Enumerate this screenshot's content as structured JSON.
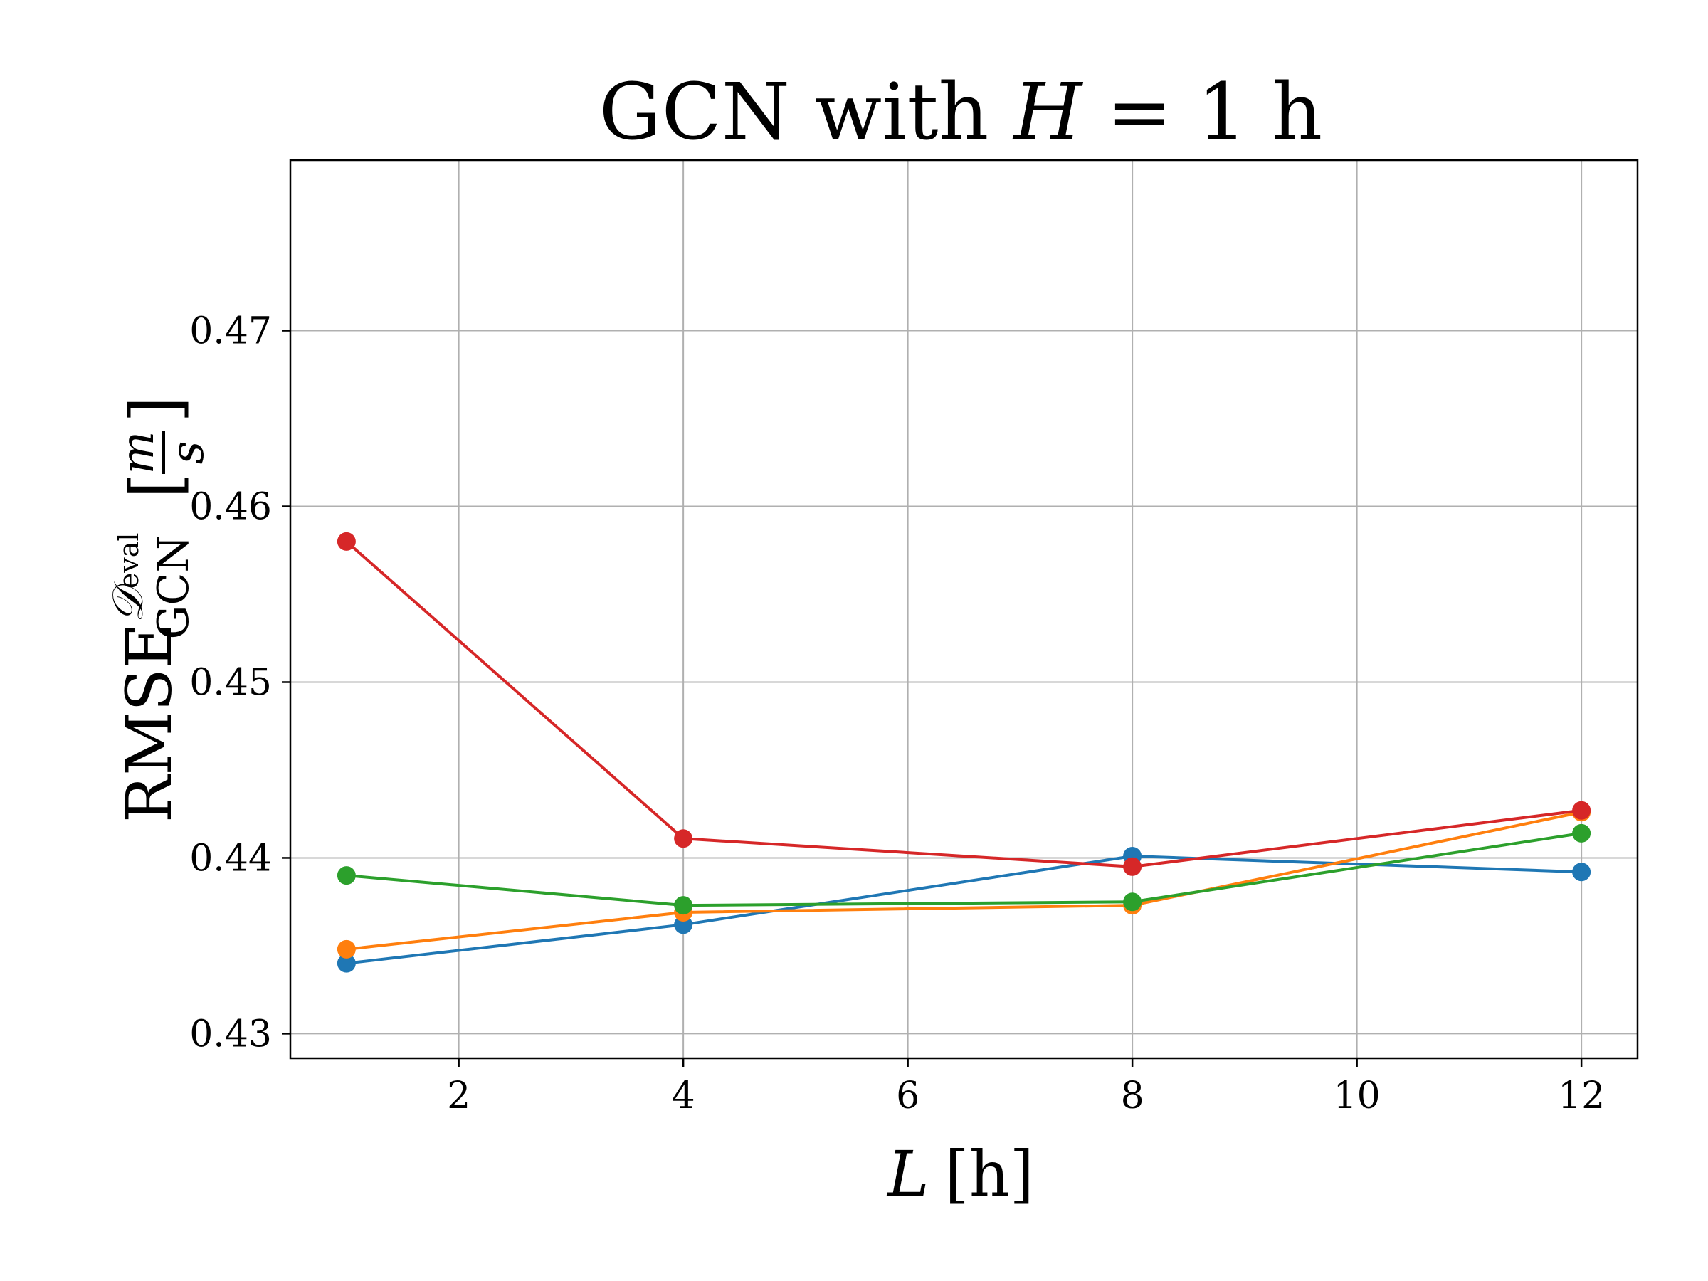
{
  "chart_data": {
    "type": "line",
    "title": {
      "prefix": "GCN with ",
      "var": "H",
      "suffix": " = 1 h"
    },
    "xlabel": {
      "var": "L",
      "unit": "[h]"
    },
    "ylabel": {
      "main": "RMSE",
      "sup": "𝒟",
      "sup_sub": "eval",
      "sub": "GCN",
      "unit_num": "m",
      "unit_den": "s"
    },
    "xlim": [
      0.5,
      12.5
    ],
    "ylim": [
      0.4286,
      0.4797
    ],
    "xticks": [
      2,
      4,
      6,
      8,
      10,
      12
    ],
    "xtick_labels": [
      "2",
      "4",
      "6",
      "8",
      "10",
      "12"
    ],
    "yticks": [
      0.43,
      0.44,
      0.45,
      0.46,
      0.47
    ],
    "ytick_labels": [
      "0.43",
      "0.44",
      "0.45",
      "0.46",
      "0.47"
    ],
    "grid": true,
    "x": [
      1,
      4,
      8,
      12
    ],
    "series": [
      {
        "color": "#1f77b4",
        "values": [
          0.434,
          0.4362,
          0.4401,
          0.4392
        ]
      },
      {
        "color": "#ff7f0e",
        "values": [
          0.4348,
          0.4369,
          0.4373,
          0.4426
        ]
      },
      {
        "color": "#2ca02c",
        "values": [
          0.439,
          0.4373,
          0.4375,
          0.4414
        ]
      },
      {
        "color": "#d62728",
        "values": [
          0.458,
          0.4411,
          0.4395,
          0.4427
        ]
      }
    ]
  }
}
